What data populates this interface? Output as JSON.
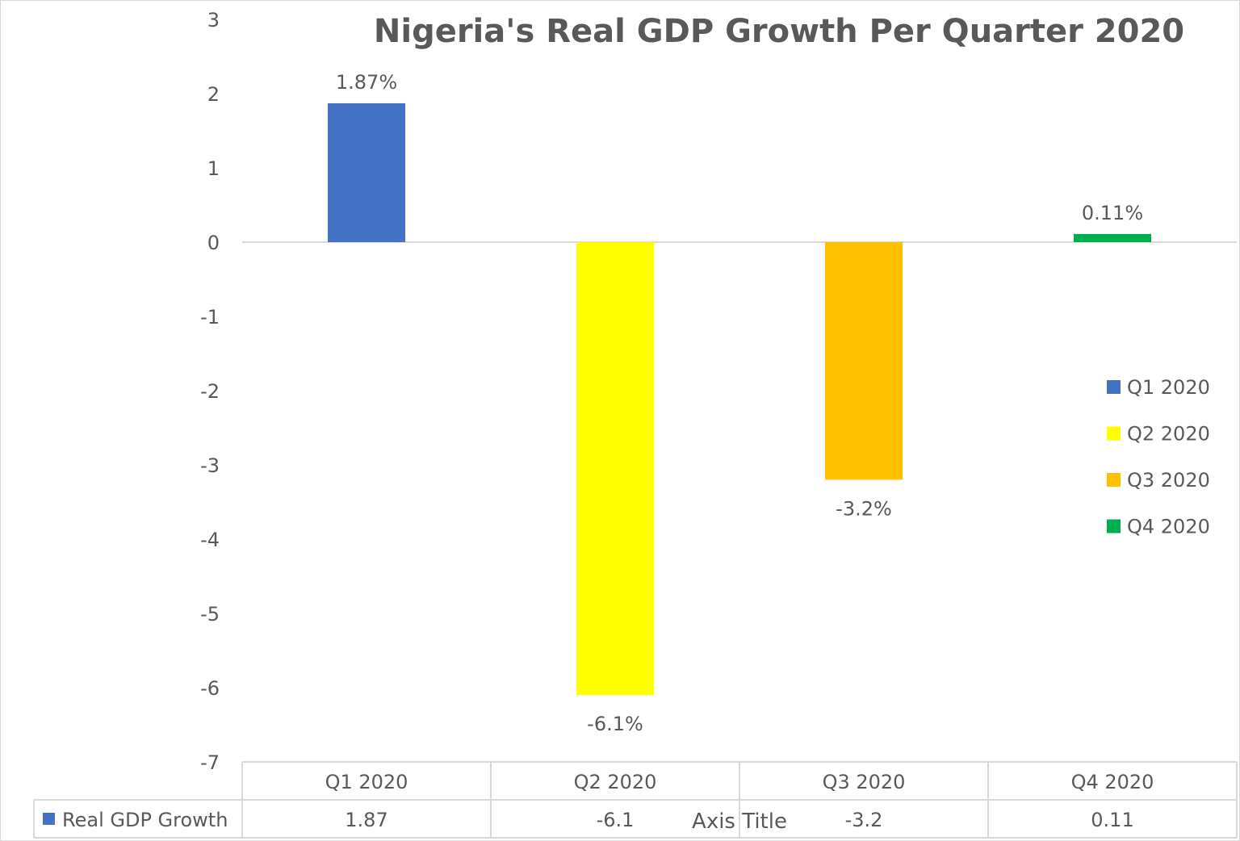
{
  "chart_data": {
    "type": "bar",
    "title": "Nigeria's Real GDP Growth Per Quarter 2020",
    "categories": [
      "Q1 2020",
      "Q2 2020",
      "Q3 2020",
      "Q4 2020"
    ],
    "series": [
      {
        "name": "Real GDP Growth",
        "values": [
          1.87,
          -6.1,
          -3.2,
          0.11
        ]
      }
    ],
    "data_labels": [
      "1.87%",
      "-6.1%",
      "-3.2%",
      "0.11%"
    ],
    "table_values": [
      "1.87",
      "-6.1",
      "-3.2",
      "0.11"
    ],
    "colors": [
      "#4472C4",
      "#FFFF00",
      "#FFC000",
      "#00B050"
    ],
    "xlabel": "Axis Title",
    "ylabel": "",
    "ylim": [
      -7,
      3
    ],
    "yticks": [
      "3",
      "2",
      "1",
      "0",
      "-1",
      "-2",
      "-3",
      "-4",
      "-5",
      "-6",
      "-7"
    ],
    "grid": false,
    "legend_position": "right",
    "legend": [
      "Q1 2020",
      "Q2 2020",
      "Q3 2020",
      "Q4 2020"
    ],
    "data_table": true
  }
}
